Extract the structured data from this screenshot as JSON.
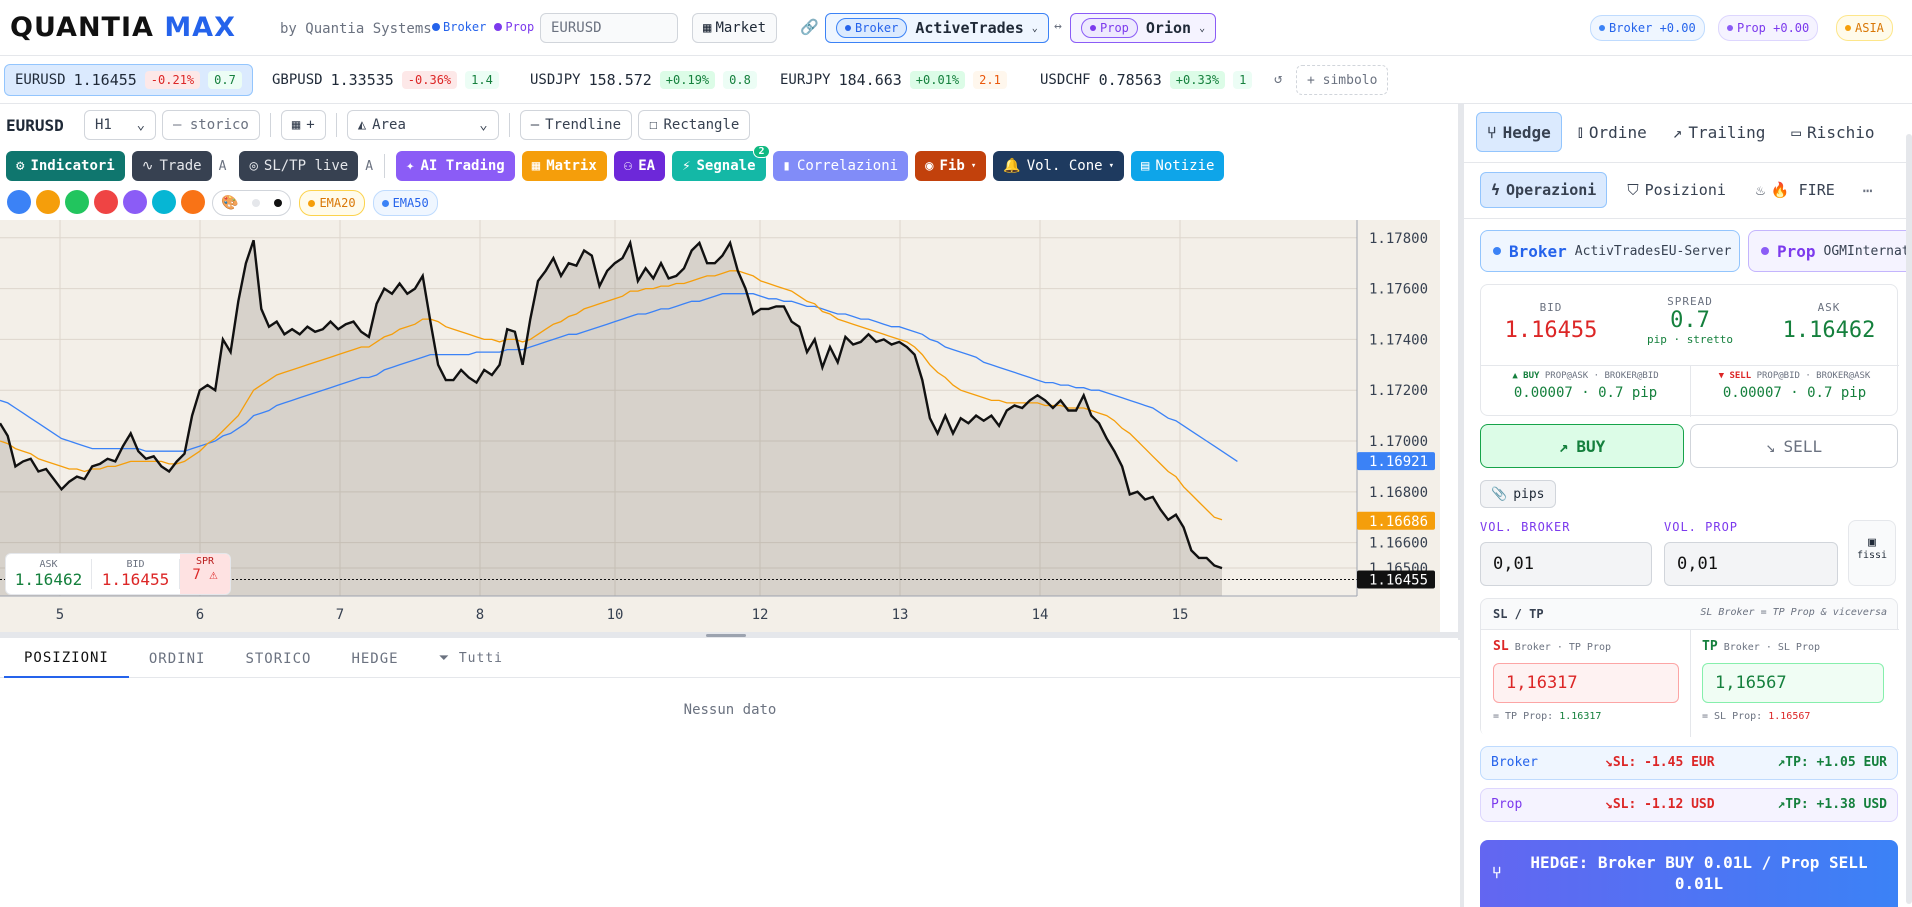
{
  "header": {
    "logo_a": "QUANTIA",
    "logo_b": "MAX",
    "by": "by Quantia Systems",
    "broker_tag": "Broker",
    "prop_tag": "Prop",
    "symbol": "EURUSD",
    "market": "Market",
    "broker_sel_tag": "Broker",
    "broker_sel": "ActiveTrades",
    "arrows": "↔",
    "prop_sel_tag": "Prop",
    "prop_sel": "Orion",
    "broker_pnl": "Broker +0.00",
    "prop_pnl": "Prop +0.00",
    "session": "ASIA"
  },
  "tickers": [
    {
      "sym": "EURUSD",
      "price": "1.16455",
      "chg": "-0.21%",
      "spr": "0.7",
      "dir": "neg"
    },
    {
      "sym": "GBPUSD",
      "price": "1.33535",
      "chg": "-0.36%",
      "spr": "1.4",
      "dir": "neg"
    },
    {
      "sym": "USDJPY",
      "price": "158.572",
      "chg": "+0.19%",
      "spr": "0.8",
      "dir": "pos"
    },
    {
      "sym": "EURJPY",
      "price": "184.663",
      "chg": "+0.01%",
      "spr": "2.1",
      "dir": "pos"
    },
    {
      "sym": "USDCHF",
      "price": "0.78563",
      "chg": "+0.33%",
      "spr": "1",
      "dir": "pos"
    }
  ],
  "ticker_add": "+ simbolo",
  "toolbar": {
    "symbol": "EURUSD",
    "tf": "H1",
    "storico": "— storico",
    "grid": "+",
    "type": "Area",
    "trendline": "Trendline",
    "rectangle": "Rectangle"
  },
  "tools": {
    "indicatori": "Indicatori",
    "trade": "Trade",
    "a1": "A",
    "sltp": "SL/TP live",
    "a2": "A",
    "ai": "AI Trading",
    "matrix": "Matrix",
    "ea": "EA",
    "segnale": "Segnale",
    "segnale_badge": "2",
    "corr": "Correlazioni",
    "fib": "Fib",
    "vol": "Vol. Cone",
    "notizie": "Notizie"
  },
  "colors": [
    "#3b82f6",
    "#f59e0b",
    "#22c55e",
    "#ef4444",
    "#8b5cf6",
    "#06b6d4",
    "#f97316"
  ],
  "ema": {
    "e20": "EMA20",
    "e50": "EMA50"
  },
  "chart_data": {
    "type": "area",
    "x_ticks": [
      "5",
      "6",
      "7",
      "8",
      "10",
      "12",
      "13",
      "14",
      "15"
    ],
    "y_ticks": [
      "1.17800",
      "1.17600",
      "1.17400",
      "1.17200",
      "1.17000",
      "1.16800",
      "1.16600",
      "1.16500"
    ],
    "ylim": [
      1.1639,
      1.1787
    ],
    "price": [
      1.1707,
      1.1702,
      1.169,
      1.1692,
      1.1693,
      1.1688,
      1.1689,
      1.1685,
      1.1681,
      1.1684,
      1.1686,
      1.1685,
      1.169,
      1.1691,
      1.1693,
      1.1692,
      1.1698,
      1.1703,
      1.1696,
      1.1693,
      1.1694,
      1.169,
      1.1688,
      1.1692,
      1.1695,
      1.171,
      1.172,
      1.1722,
      1.172,
      1.174,
      1.1735,
      1.1755,
      1.177,
      1.1779,
      1.1752,
      1.1745,
      1.1747,
      1.1742,
      1.1744,
      1.1742,
      1.1745,
      1.1743,
      1.1744,
      1.1747,
      1.1744,
      1.1746,
      1.1747,
      1.1743,
      1.1741,
      1.1754,
      1.176,
      1.1758,
      1.1762,
      1.1758,
      1.176,
      1.1765,
      1.1747,
      1.173,
      1.1724,
      1.1724,
      1.1728,
      1.1725,
      1.1723,
      1.1728,
      1.1726,
      1.173,
      1.1744,
      1.1743,
      1.173,
      1.1748,
      1.1763,
      1.1767,
      1.1772,
      1.1765,
      1.177,
      1.1769,
      1.1775,
      1.1773,
      1.1761,
      1.1767,
      1.177,
      1.1772,
      1.1778,
      1.1763,
      1.1768,
      1.1764,
      1.177,
      1.1764,
      1.1765,
      1.1768,
      1.1775,
      1.1778,
      1.177,
      1.177,
      1.1773,
      1.1778,
      1.1767,
      1.176,
      1.175,
      1.1752,
      1.1752,
      1.1753,
      1.1753,
      1.1747,
      1.1745,
      1.1735,
      1.174,
      1.1729,
      1.1737,
      1.1731,
      1.1741,
      1.1738,
      1.1739,
      1.1742,
      1.1739,
      1.174,
      1.1738,
      1.1739,
      1.1737,
      1.1734,
      1.1724,
      1.1709,
      1.1703,
      1.171,
      1.1703,
      1.1709,
      1.1707,
      1.171,
      1.1708,
      1.171,
      1.1706,
      1.1712,
      1.1714,
      1.1713,
      1.1716,
      1.1718,
      1.1716,
      1.1713,
      1.1716,
      1.1712,
      1.1712,
      1.1718,
      1.171,
      1.1707,
      1.1701,
      1.1696,
      1.169,
      1.1679,
      1.168,
      1.1677,
      1.1678,
      1.1673,
      1.1669,
      1.1671,
      1.1666,
      1.1657,
      1.1654,
      1.1654,
      1.1651,
      1.165
    ],
    "ema20": [
      1.17,
      1.1699,
      1.1697,
      1.1696,
      1.1695,
      1.1693,
      1.1692,
      1.1691,
      1.169,
      1.1689,
      1.1689,
      1.1688,
      1.1689,
      1.1689,
      1.169,
      1.169,
      1.1691,
      1.1692,
      1.1692,
      1.1692,
      1.1692,
      1.1692,
      1.1691,
      1.1691,
      1.1692,
      1.1694,
      1.1696,
      1.1699,
      1.1701,
      1.1704,
      1.1707,
      1.171,
      1.1715,
      1.172,
      1.1722,
      1.1724,
      1.1726,
      1.1727,
      1.1728,
      1.1729,
      1.173,
      1.1731,
      1.1732,
      1.1733,
      1.1734,
      1.1735,
      1.1736,
      1.1737,
      1.1737,
      1.1739,
      1.1741,
      1.1742,
      1.1744,
      1.1745,
      1.1746,
      1.1748,
      1.1748,
      1.1747,
      1.1745,
      1.1744,
      1.1743,
      1.1742,
      1.1741,
      1.174,
      1.174,
      1.1739,
      1.174,
      1.174,
      1.1739,
      1.174,
      1.1742,
      1.1744,
      1.1746,
      1.1747,
      1.1749,
      1.175,
      1.1752,
      1.1753,
      1.1754,
      1.1755,
      1.1756,
      1.1757,
      1.1759,
      1.1759,
      1.176,
      1.176,
      1.1761,
      1.1761,
      1.1762,
      1.1762,
      1.1763,
      1.1764,
      1.1765,
      1.1765,
      1.1766,
      1.1767,
      1.1767,
      1.1766,
      1.1765,
      1.1763,
      1.1762,
      1.1761,
      1.176,
      1.1759,
      1.1757,
      1.1755,
      1.1754,
      1.1751,
      1.175,
      1.1748,
      1.1747,
      1.1746,
      1.1745,
      1.1744,
      1.1743,
      1.1742,
      1.1741,
      1.174,
      1.1739,
      1.1737,
      1.1734,
      1.173,
      1.1727,
      1.1725,
      1.1722,
      1.172,
      1.1719,
      1.1718,
      1.1717,
      1.1716,
      1.1716,
      1.1715,
      1.1715,
      1.1715,
      1.1715,
      1.1715,
      1.1714,
      1.1714,
      1.1714,
      1.1713,
      1.1713,
      1.1713,
      1.1712,
      1.1711,
      1.171,
      1.1708,
      1.1705,
      1.1703,
      1.17,
      1.1697,
      1.1694,
      1.1691,
      1.1688,
      1.1686,
      1.1682,
      1.1679,
      1.1676,
      1.1673,
      1.167,
      1.1669
    ],
    "ema50": [
      1.1716,
      1.1715,
      1.1713,
      1.1711,
      1.1709,
      1.1707,
      1.1705,
      1.1703,
      1.1701,
      1.17,
      1.1699,
      1.1698,
      1.1697,
      1.1697,
      1.1697,
      1.1697,
      1.1697,
      1.1697,
      1.1697,
      1.1696,
      1.1696,
      1.1696,
      1.1696,
      1.1696,
      1.1696,
      1.1697,
      1.1698,
      1.1699,
      1.17,
      1.1702,
      1.1703,
      1.1705,
      1.1707,
      1.171,
      1.1711,
      1.1712,
      1.1714,
      1.1715,
      1.1716,
      1.1717,
      1.1718,
      1.1719,
      1.172,
      1.1721,
      1.1722,
      1.1723,
      1.1724,
      1.1725,
      1.1725,
      1.1726,
      1.1728,
      1.1729,
      1.173,
      1.1731,
      1.1732,
      1.1733,
      1.1734,
      1.1734,
      1.1734,
      1.1734,
      1.1734,
      1.1734,
      1.1735,
      1.1735,
      1.1735,
      1.1735,
      1.1736,
      1.1736,
      1.1736,
      1.1737,
      1.1738,
      1.1739,
      1.174,
      1.1741,
      1.1742,
      1.1742,
      1.1743,
      1.1744,
      1.1745,
      1.1746,
      1.1747,
      1.1748,
      1.1749,
      1.175,
      1.175,
      1.1751,
      1.1752,
      1.1752,
      1.1753,
      1.1754,
      1.1755,
      1.1755,
      1.1756,
      1.1757,
      1.1758,
      1.1758,
      1.1758,
      1.1758,
      1.1758,
      1.1757,
      1.1756,
      1.1756,
      1.1755,
      1.1755,
      1.1754,
      1.1753,
      1.1753,
      1.1752,
      1.1751,
      1.175,
      1.175,
      1.1749,
      1.1748,
      1.1748,
      1.1747,
      1.1746,
      1.1745,
      1.1745,
      1.1744,
      1.1743,
      1.1742,
      1.174,
      1.1739,
      1.1737,
      1.1736,
      1.1735,
      1.1734,
      1.1733,
      1.1731,
      1.173,
      1.1729,
      1.1728,
      1.1727,
      1.1726,
      1.1725,
      1.1724,
      1.1723,
      1.1723,
      1.1722,
      1.1722,
      1.1721,
      1.1721,
      1.172,
      1.172,
      1.1719,
      1.1718,
      1.1717,
      1.1716,
      1.1715,
      1.1714,
      1.1713,
      1.1711,
      1.1709,
      1.1708,
      1.1706,
      1.1704,
      1.1702,
      1.17,
      1.1698,
      1.1696,
      1.1694,
      1.1692
    ],
    "labels": {
      "ema50": "1.16921",
      "ema20": "1.16686",
      "last": "1.16455"
    }
  },
  "quote": {
    "ask_l": "ASK",
    "ask": "1.16462",
    "bid_l": "BID",
    "bid": "1.16455",
    "spr_l": "SPR",
    "spr": "7 ⚠"
  },
  "bottom": {
    "tabs": [
      "POSIZIONI",
      "ORDINI",
      "STORICO",
      "HEDGE"
    ],
    "filter": "Tutti",
    "empty": "Nessun dato"
  },
  "panel": {
    "tabs": [
      "Hedge",
      "Ordine",
      "Trailing",
      "Rischio"
    ],
    "subtabs": [
      "Operazioni",
      "Posizioni",
      "🔥 FIRE"
    ],
    "broker_l": "Broker",
    "broker_srv": "ActivTradesEU-Server",
    "prop_l": "Prop",
    "prop_srv": "OGMInternat",
    "bid_l": "BID",
    "bid": "1.16455",
    "spread_l": "SPREAD",
    "spread": "0.7",
    "spread_sub": "pip · stretto",
    "ask_l": "ASK",
    "ask": "1.16462",
    "buy_l": "▲ BUY",
    "buy_desc": "PROP@ASK · BROKER@BID",
    "buy_v": "0.00007 · 0.7 pip",
    "sell_l": "▼ SELL",
    "sell_desc": "PROP@BID · BROKER@ASK",
    "sell_v": "0.00007 · 0.7 pip",
    "buy": "BUY",
    "sell": "SELL",
    "pips": "pips",
    "vol_b_l": "VOL. BROKER",
    "vol_b": "0,01",
    "vol_p_l": "VOL. PROP",
    "vol_p": "0,01",
    "fissi": "fissi",
    "sltp_l": "SL / TP",
    "sltp_note": "SL Broker = TP Prop & viceversa",
    "sl_l": "SL",
    "sl_sub": "Broker · TP Prop",
    "sl": "1,16317",
    "sl_eq": "= TP Prop: ",
    "sl_eq_v": "1.16317",
    "tp_l": "TP",
    "tp_sub": "Broker · SL Prop",
    "tp": "1,16567",
    "tp_eq": "= SL Prop: ",
    "tp_eq_v": "1.16567",
    "b_row": "Broker",
    "b_sl": "SL: -1.45 EUR",
    "b_tp": "TP: +1.05 EUR",
    "p_row": "Prop",
    "p_sl": "SL: -1.12 USD",
    "p_tp": "TP: +1.38 USD",
    "hedge_btn": "HEDGE: Broker BUY 0.01L / Prop SELL 0.01L"
  }
}
